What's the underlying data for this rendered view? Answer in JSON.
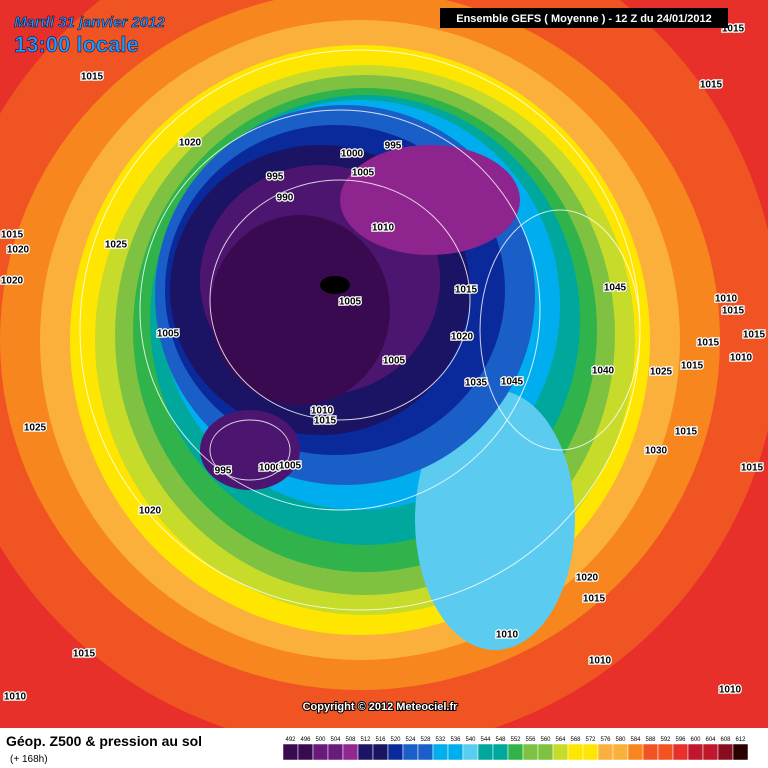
{
  "header": {
    "date": "Mardi 31 janvier 2012",
    "time": "13:00 locale",
    "model": "Ensemble GEFS ( Moyenne )  -  12 Z du 24/01/2012"
  },
  "footer": {
    "title": "Géop. Z500 & pression au sol",
    "lead": "(+ 168h)",
    "copyright": "Copyright © 2012 Meteociel.fr"
  },
  "legend": {
    "ticks": [
      492,
      496,
      500,
      504,
      508,
      512,
      516,
      520,
      524,
      528,
      532,
      536,
      540,
      544,
      548,
      552,
      556,
      560,
      564,
      568,
      572,
      576,
      580,
      584,
      588,
      592,
      596,
      600,
      604,
      608,
      612
    ]
  },
  "isobars": [
    "1015",
    "1020",
    "995",
    "1000",
    "995",
    "1005",
    "990",
    "1015",
    "1025",
    "1020",
    "1010",
    "1015",
    "1015",
    "1020",
    "1005",
    "1015",
    "1045",
    "1010",
    "1015",
    "1005",
    "1020",
    "1015",
    "1015",
    "1010",
    "1005",
    "1040",
    "1025",
    "1015",
    "1035",
    "1045",
    "1010",
    "1015",
    "1025",
    "1015",
    "995",
    "1000",
    "1005",
    "1030",
    "1020",
    "1015",
    "1020",
    "1015",
    "1010",
    "1015",
    "1010",
    "1010",
    "1010"
  ]
}
